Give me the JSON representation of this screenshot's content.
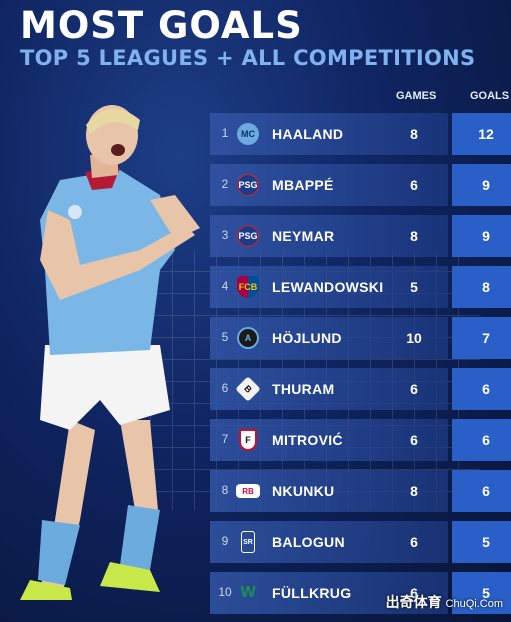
{
  "header": {
    "title": "MOST GOALS",
    "subtitle": "TOP 5 LEAGUES + ALL COMPETITIONS"
  },
  "columns": {
    "games": "GAMES",
    "goals": "GOALS"
  },
  "players": [
    {
      "rank": "1",
      "name": "HAALAND",
      "games": "8",
      "goals": "12",
      "crest_color": "#6cabdd",
      "crest_text": "MC"
    },
    {
      "rank": "2",
      "name": "MBAPPÉ",
      "games": "6",
      "goals": "9",
      "crest_color": "#1e3a8a",
      "crest_text": "PSG"
    },
    {
      "rank": "3",
      "name": "NEYMAR",
      "games": "8",
      "goals": "9",
      "crest_color": "#1e3a8a",
      "crest_text": "PSG"
    },
    {
      "rank": "4",
      "name": "LEWANDOWSKI",
      "games": "5",
      "goals": "8",
      "crest_color": "#a50044",
      "crest_text": "FCB"
    },
    {
      "rank": "5",
      "name": "HÖJLUND",
      "games": "10",
      "goals": "7",
      "crest_color": "#1a1a1a",
      "crest_text": "A"
    },
    {
      "rank": "6",
      "name": "THURAM",
      "games": "6",
      "goals": "6",
      "crest_color": "#f2f2f2",
      "crest_text": "B"
    },
    {
      "rank": "7",
      "name": "MITROVIĆ",
      "games": "6",
      "goals": "6",
      "crest_color": "#ffffff",
      "crest_text": "F"
    },
    {
      "rank": "8",
      "name": "NKUNKU",
      "games": "8",
      "goals": "6",
      "crest_color": "#dd0741",
      "crest_text": "RB"
    },
    {
      "rank": "9",
      "name": "BALOGUN",
      "games": "6",
      "goals": "5",
      "crest_color": "#ffffff",
      "crest_text": "SR"
    },
    {
      "rank": "10",
      "name": "FÜLLKRUG",
      "games": "6",
      "goals": "5",
      "crest_color": "#1d9053",
      "crest_text": "W"
    }
  ],
  "watermark": {
    "main": "出奇体育",
    "site": "ChuQi.Com"
  },
  "colors": {
    "accent": "#2a5fc8",
    "subtitle": "#7fb2ee",
    "background": "#0f2460"
  }
}
